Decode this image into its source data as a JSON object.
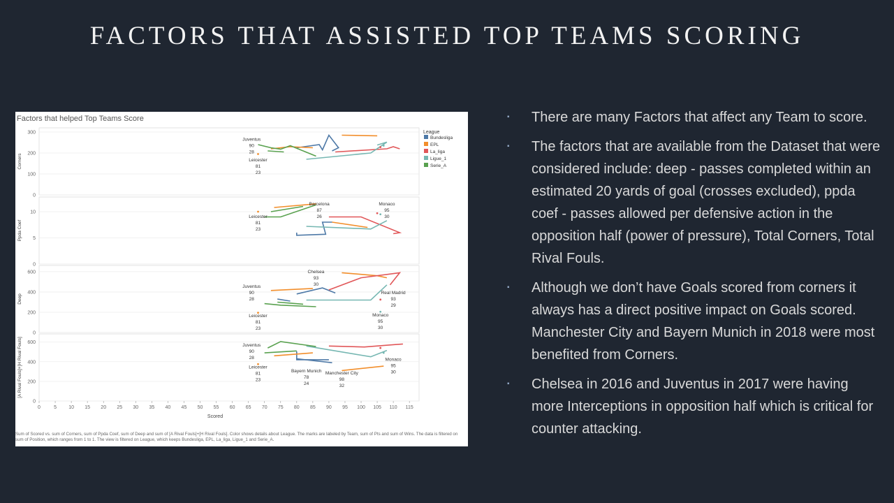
{
  "slide": {
    "title": "FACTORS THAT ASSISTED TOP TEAMS SCORING",
    "bullets": [
      "There are many Factors that affect any Team to score.",
      "The factors that are available from the Dataset that were considered include: deep - passes completed within an estimated 20 yards of goal (crosses excluded), ppda coef - passes allowed per defensive action in the opposition half (power of pressure), Total Corners, Total Rival Fouls.",
      "Although we don’t have Goals scored from corners it always has a direct positive impact on Goals scored. Manchester City and Bayern Munich in 2018 were most benefited from Corners.",
      "Chelsea in 2016 and Juventus in 2017 were having more Interceptions in opposition half which is critical for counter attacking."
    ],
    "bullet_marker": "▪"
  },
  "chart_data": {
    "type": "line",
    "title": "Factors that helped Top Teams Score",
    "caption": "Sum of Scored vs. sum of Corners, sum of Ppda Coef, sum of Deep and sum of [A Rival Fouls]+[H Rival Fouls]. Color shows details about League. The marks are labeled by Team, sum of Pts and sum of Wins. The data is filtered on sum of Position, which ranges from 1 to 1. The view is filtered on League, which keeps Bundesliga, EPL, La_liga, Ligue_1 and Serie_A.",
    "xlabel": "Scored",
    "x_ticks": [
      0,
      5,
      10,
      15,
      20,
      25,
      30,
      35,
      40,
      45,
      50,
      55,
      60,
      65,
      70,
      75,
      80,
      85,
      90,
      95,
      100,
      105,
      110,
      115
    ],
    "xlim": [
      0,
      118
    ],
    "legend": {
      "title": "League",
      "position": "right",
      "items": [
        {
          "name": "Bundesliga",
          "color": "#4e79a7"
        },
        {
          "name": "EPL",
          "color": "#f28e2b"
        },
        {
          "name": "La_liga",
          "color": "#e15759"
        },
        {
          "name": "Ligue_1",
          "color": "#76b7b2"
        },
        {
          "name": "Serie_A",
          "color": "#59a14f"
        }
      ]
    },
    "panels": [
      {
        "ylabel": "Corners",
        "yticks": [
          0,
          100,
          200,
          300
        ],
        "ylim": [
          0,
          300
        ],
        "series": [
          {
            "league": "Bundesliga",
            "points": [
              [
                80,
                225
              ],
              [
                87,
                240
              ],
              [
                88,
                215
              ],
              [
                90,
                285
              ],
              [
                93,
                225
              ],
              [
                91,
                210
              ]
            ]
          },
          {
            "league": "EPL",
            "points": [
              [
                72,
                220
              ],
              [
                78,
                230
              ],
              [
                85,
                225
              ]
            ]
          },
          {
            "league": "EPL",
            "points": [
              [
                94,
                285
              ],
              [
                105,
                282
              ]
            ]
          },
          {
            "league": "La_liga",
            "points": [
              [
                92,
                205
              ],
              [
                108,
                220
              ],
              [
                110,
                230
              ],
              [
                112,
                220
              ]
            ]
          },
          {
            "league": "Ligue_1",
            "points": [
              [
                83,
                170
              ],
              [
                103,
                200
              ],
              [
                108,
                252
              ],
              [
                105,
                238
              ]
            ]
          },
          {
            "league": "Serie_A",
            "points": [
              [
                68,
                240
              ],
              [
                72,
                225
              ],
              [
                75,
                218
              ],
              [
                78,
                235
              ],
              [
                86,
                185
              ]
            ]
          },
          {
            "league": "Serie_A",
            "points": [
              [
                71,
                210
              ],
              [
                76,
                205
              ]
            ]
          }
        ],
        "dots": [
          {
            "league": "EPL",
            "x": 68,
            "y": 195
          },
          {
            "league": "La_liga",
            "x": 106,
            "y": 228
          },
          {
            "league": "Ligue_1",
            "x": 107,
            "y": 235
          }
        ],
        "labels": [
          {
            "team": "Juventus",
            "pts": "90",
            "wins": "28",
            "x": 66,
            "y": 258
          },
          {
            "team": "Leicester",
            "pts": "81",
            "wins": "23",
            "x": 68,
            "y": 160
          }
        ]
      },
      {
        "ylabel": "Ppda Coef",
        "yticks": [
          0,
          5,
          10
        ],
        "ylim": [
          0,
          12
        ],
        "series": [
          {
            "league": "Bundesliga",
            "points": [
              [
                80,
                6
              ],
              [
                80,
                5.5
              ],
              [
                89,
                5.7
              ],
              [
                88,
                8
              ],
              [
                91,
                8
              ]
            ]
          },
          {
            "league": "EPL",
            "points": [
              [
                73,
                10.8
              ],
              [
                86,
                11.5
              ]
            ]
          },
          {
            "league": "EPL",
            "points": [
              [
                91,
                8
              ],
              [
                102,
                7
              ]
            ]
          },
          {
            "league": "La_liga",
            "points": [
              [
                90,
                9
              ],
              [
                100,
                9
              ],
              [
                112,
                6
              ],
              [
                110,
                5.8
              ]
            ]
          },
          {
            "league": "Ligue_1",
            "points": [
              [
                83,
                7.2
              ],
              [
                103,
                6.7
              ],
              [
                108,
                8.3
              ]
            ]
          },
          {
            "league": "Serie_A",
            "points": [
              [
                70,
                9
              ],
              [
                75,
                9
              ],
              [
                86,
                11.3
              ]
            ]
          },
          {
            "league": "Serie_A",
            "points": [
              [
                72,
                10
              ],
              [
                82,
                11
              ]
            ]
          }
        ],
        "dots": [
          {
            "league": "EPL",
            "x": 68,
            "y": 10
          },
          {
            "league": "La_liga",
            "x": 105,
            "y": 9.7
          },
          {
            "league": "Ligue_1",
            "x": 106,
            "y": 9.5
          }
        ],
        "labels": [
          {
            "team": "Barcelona",
            "pts": "87",
            "wins": "26",
            "x": 87,
            "y": 11.2
          },
          {
            "team": "Monaco",
            "pts": "95",
            "wins": "30",
            "x": 108,
            "y": 11.2
          },
          {
            "team": "Leicester",
            "pts": "81",
            "wins": "23",
            "x": 68,
            "y": 8.8
          }
        ]
      },
      {
        "ylabel": "Deep",
        "yticks": [
          0,
          200,
          400,
          600
        ],
        "ylim": [
          0,
          620
        ],
        "series": [
          {
            "league": "Bundesliga",
            "points": [
              [
                80,
                380
              ],
              [
                88,
                440
              ],
              [
                92,
                390
              ]
            ]
          },
          {
            "league": "Bundesliga",
            "points": [
              [
                74,
                330
              ],
              [
                78,
                310
              ]
            ]
          },
          {
            "league": "EPL",
            "points": [
              [
                72,
                415
              ],
              [
                85,
                435
              ]
            ]
          },
          {
            "league": "EPL",
            "points": [
              [
                94,
                590
              ],
              [
                105,
                560
              ],
              [
                108,
                540
              ]
            ]
          },
          {
            "league": "La_liga",
            "points": [
              [
                90,
                420
              ],
              [
                100,
                540
              ],
              [
                112,
                590
              ],
              [
                109,
                470
              ]
            ]
          },
          {
            "league": "Ligue_1",
            "points": [
              [
                83,
                320
              ],
              [
                103,
                320
              ],
              [
                108,
                470
              ]
            ]
          },
          {
            "league": "Serie_A",
            "points": [
              [
                70,
                285
              ],
              [
                75,
                270
              ],
              [
                86,
                255
              ]
            ]
          },
          {
            "league": "Serie_A",
            "points": [
              [
                74,
                300
              ],
              [
                78,
                290
              ],
              [
                82,
                280
              ]
            ]
          }
        ],
        "dots": [
          {
            "league": "EPL",
            "x": 68,
            "y": 195
          },
          {
            "league": "La_liga",
            "x": 106,
            "y": 325
          },
          {
            "league": "Ligue_1",
            "x": 106,
            "y": 205
          }
        ],
        "labels": [
          {
            "team": "Chelsea",
            "pts": "93",
            "wins": "30",
            "x": 86,
            "y": 585
          },
          {
            "team": "Juventus",
            "pts": "90",
            "wins": "28",
            "x": 66,
            "y": 440
          },
          {
            "team": "Real Madrid",
            "pts": "93",
            "wins": "29",
            "x": 110,
            "y": 380
          },
          {
            "team": "Leicester",
            "pts": "81",
            "wins": "23",
            "x": 68,
            "y": 150
          },
          {
            "team": "Monaco",
            "pts": "95",
            "wins": "30",
            "x": 106,
            "y": 160
          }
        ]
      },
      {
        "ylabel": "[A Rival Fouls]+[H Rival Fouls]",
        "yticks": [
          0,
          200,
          400,
          600
        ],
        "ylim": [
          0,
          640
        ],
        "series": [
          {
            "league": "Bundesliga",
            "points": [
              [
                80,
                505
              ],
              [
                80,
                420
              ],
              [
                90,
                420
              ]
            ]
          },
          {
            "league": "Bundesliga",
            "points": [
              [
                80,
                430
              ],
              [
                91,
                390
              ]
            ]
          },
          {
            "league": "EPL",
            "points": [
              [
                73,
                460
              ],
              [
                85,
                490
              ]
            ]
          },
          {
            "league": "EPL",
            "points": [
              [
                94,
                310
              ],
              [
                107,
                355
              ]
            ]
          },
          {
            "league": "La_liga",
            "points": [
              [
                90,
                560
              ],
              [
                101,
                550
              ],
              [
                111,
                575
              ],
              [
                113,
                580
              ]
            ]
          },
          {
            "league": "Ligue_1",
            "points": [
              [
                83,
                560
              ],
              [
                103,
                450
              ],
              [
                108,
                515
              ]
            ]
          },
          {
            "league": "Serie_A",
            "points": [
              [
                71,
                540
              ],
              [
                75,
                605
              ],
              [
                86,
                555
              ]
            ]
          },
          {
            "league": "Serie_A",
            "points": [
              [
                70,
                490
              ],
              [
                80,
                510
              ]
            ]
          }
        ],
        "dots": [
          {
            "league": "EPL",
            "x": 68,
            "y": 375
          },
          {
            "league": "La_liga",
            "x": 106,
            "y": 540
          },
          {
            "league": "Ligue_1",
            "x": 107,
            "y": 490
          }
        ],
        "labels": [
          {
            "team": "Juventus",
            "pts": "90",
            "wins": "28",
            "x": 66,
            "y": 555
          },
          {
            "team": "Leicester",
            "pts": "81",
            "wins": "23",
            "x": 68,
            "y": 330
          },
          {
            "team": "Bayern Munich",
            "pts": "78",
            "wins": "24",
            "x": 83,
            "y": 290
          },
          {
            "team": "Manchester City",
            "pts": "98",
            "wins": "32",
            "x": 94,
            "y": 270
          },
          {
            "team": "Monaco",
            "pts": "95",
            "wins": "30",
            "x": 110,
            "y": 410
          }
        ]
      }
    ]
  }
}
